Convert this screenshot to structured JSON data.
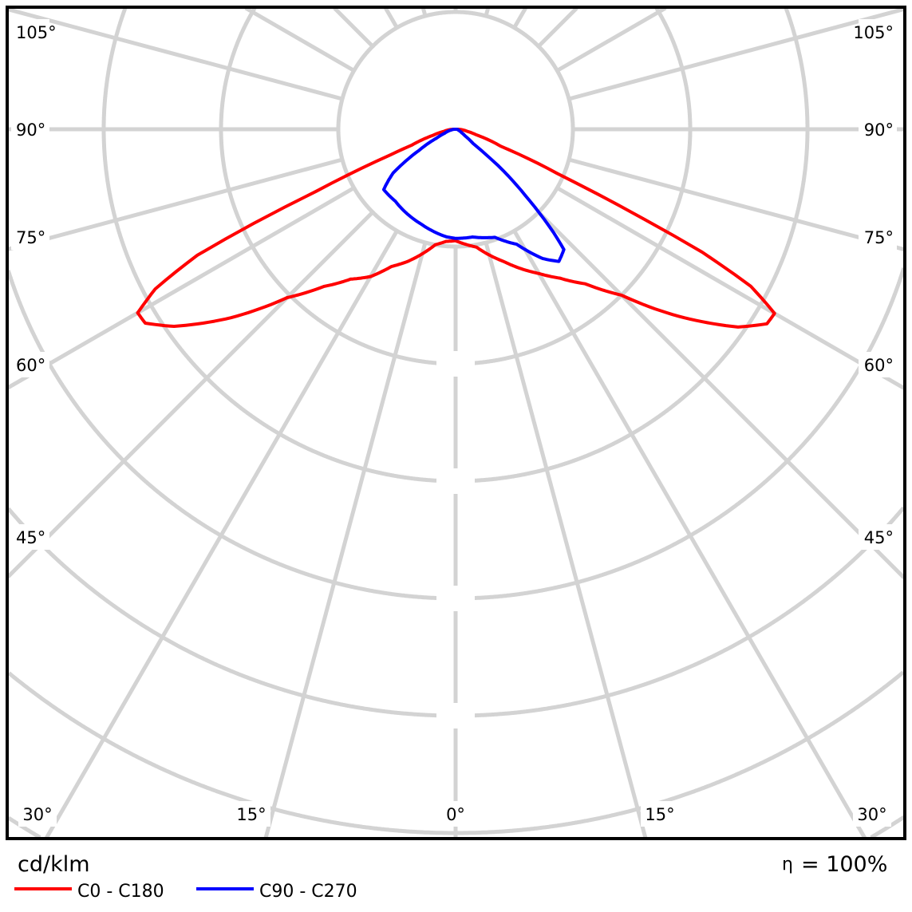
{
  "chart_data": {
    "type": "polar",
    "title": "",
    "unit_label": "cd/klm",
    "efficiency_label": "η = 100%",
    "efficiency_symbol": "η",
    "efficiency_value": "= 100%",
    "angle_labels_side": [
      "105°",
      "90°",
      "75°",
      "60°",
      "45°"
    ],
    "angle_labels_bottom": [
      "30°",
      "15°",
      "0°",
      "15°",
      "30°"
    ],
    "angle_grid_step_deg": 15,
    "radial_rings": 8,
    "radial_tick_labels": [],
    "grid": true,
    "legend_position": "bottom-left",
    "series": [
      {
        "name": "C0 - C180",
        "color": "#ff0000",
        "right_half_C0": [
          [
            0,
            0.95
          ],
          [
            10,
            1.02
          ],
          [
            20,
            1.2
          ],
          [
            30,
            1.42
          ],
          [
            35,
            1.55
          ],
          [
            40,
            1.72
          ],
          [
            45,
            2.0
          ],
          [
            50,
            2.48
          ],
          [
            55,
            2.94
          ],
          [
            58,
            3.13
          ],
          [
            60,
            3.14
          ],
          [
            62,
            2.85
          ],
          [
            63.5,
            2.35
          ],
          [
            64.7,
            1.67
          ],
          [
            66.3,
            0.98
          ],
          [
            69.4,
            0.41
          ],
          [
            75,
            0.18
          ],
          [
            80,
            0.1
          ],
          [
            90,
            0.02
          ]
        ],
        "left_half_C180": [
          [
            0,
            0.95
          ],
          [
            5,
            0.96
          ],
          [
            10,
            1.0
          ],
          [
            15,
            1.1
          ],
          [
            20,
            1.2
          ],
          [
            25,
            1.29
          ],
          [
            30,
            1.45
          ],
          [
            35,
            1.56
          ],
          [
            40,
            1.75
          ],
          [
            45,
            2.03
          ],
          [
            50,
            2.5
          ],
          [
            55,
            2.93
          ],
          [
            58,
            3.12
          ],
          [
            60,
            3.13
          ],
          [
            62,
            2.9
          ],
          [
            64,
            2.45
          ],
          [
            65,
            1.9
          ],
          [
            66,
            1.3
          ],
          [
            67,
            1.0
          ],
          [
            68.5,
            0.6
          ],
          [
            70,
            0.4
          ],
          [
            75,
            0.2
          ],
          [
            80,
            0.1
          ],
          [
            90,
            0.02
          ]
        ]
      },
      {
        "name": "C90 - C270",
        "color": "#0000ff",
        "right_half_C90": [
          [
            0,
            0.93
          ],
          [
            9,
            0.93
          ],
          [
            20,
            0.98
          ],
          [
            28,
            1.11
          ],
          [
            34,
            1.33
          ],
          [
            38,
            1.43
          ],
          [
            42,
            1.38
          ],
          [
            43.6,
            1.2
          ],
          [
            46.3,
            0.84
          ],
          [
            49.4,
            0.5
          ],
          [
            51,
            0.19
          ],
          [
            55,
            0.1
          ],
          [
            60,
            0.06
          ],
          [
            70,
            0.03
          ],
          [
            90,
            0.01
          ]
        ],
        "left_half_C270": [
          [
            0,
            0.93
          ],
          [
            5,
            0.92
          ],
          [
            20,
            0.86
          ],
          [
            30,
            0.83
          ],
          [
            40,
            0.8
          ],
          [
            45,
            0.8
          ],
          [
            50,
            0.8
          ],
          [
            55,
            0.65
          ],
          [
            60,
            0.36
          ],
          [
            65,
            0.18
          ],
          [
            70,
            0.1
          ],
          [
            80,
            0.04
          ],
          [
            90,
            0.01
          ]
        ]
      }
    ]
  }
}
